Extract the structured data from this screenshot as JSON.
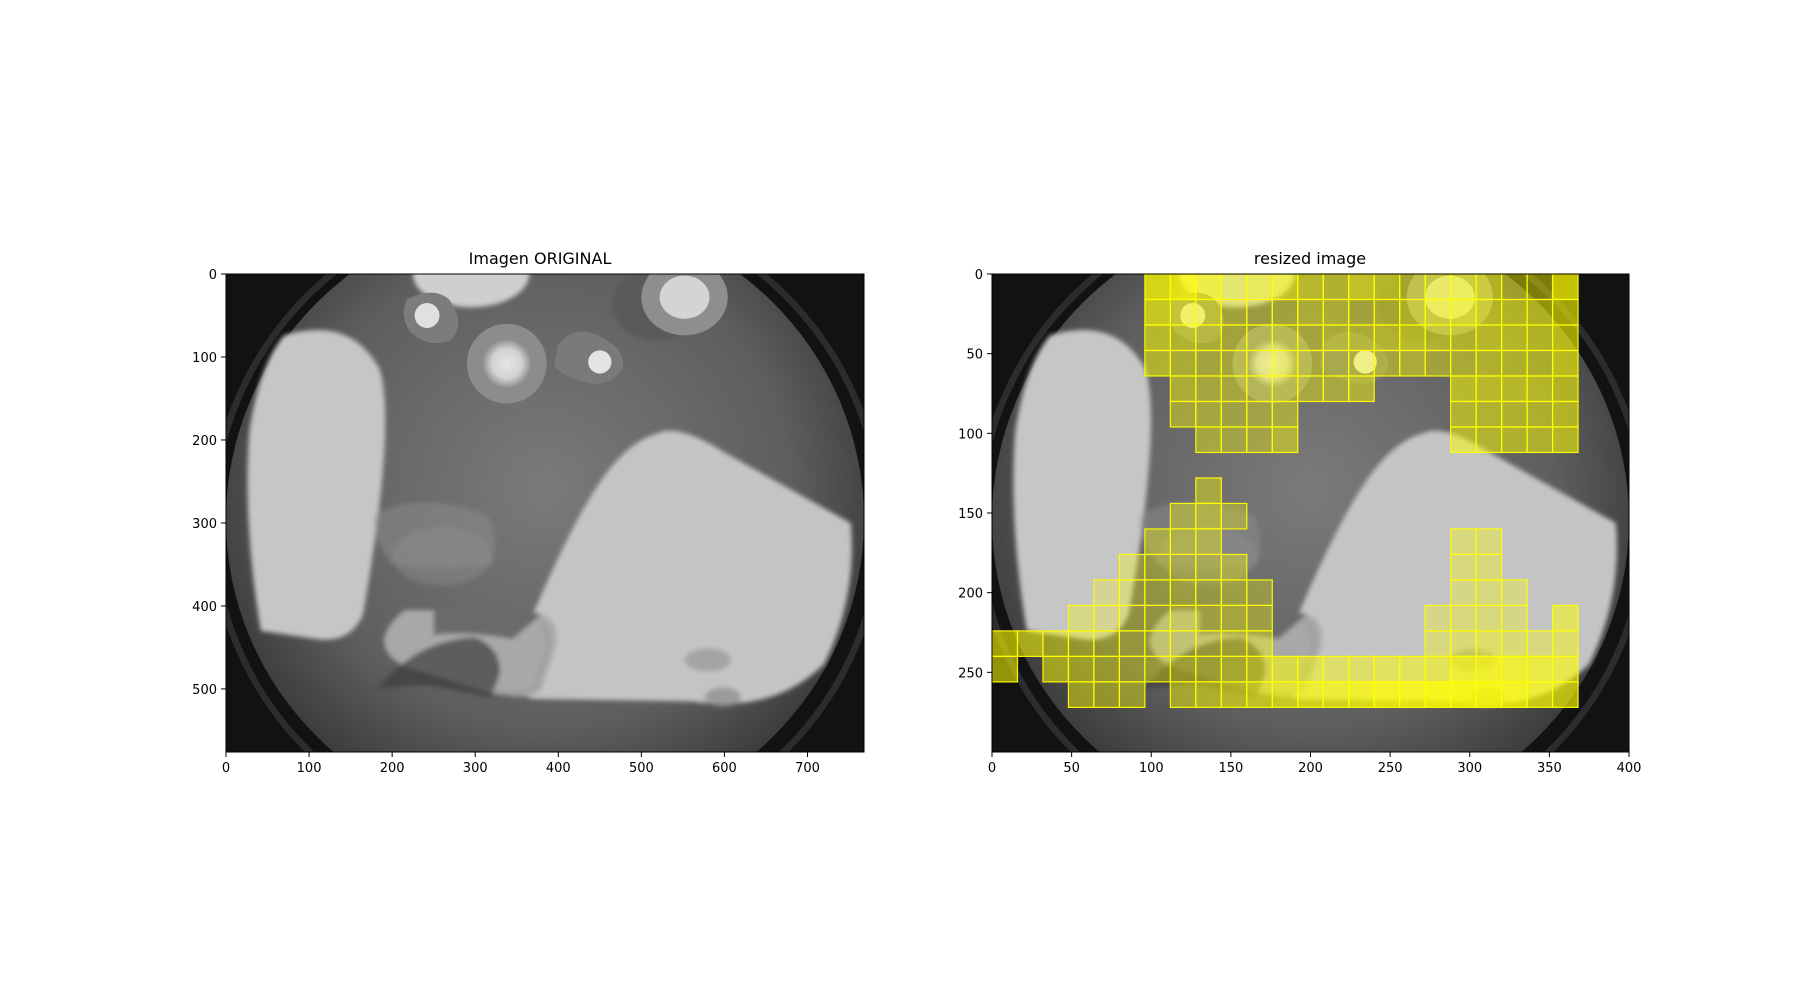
{
  "figure": {
    "panels": [
      {
        "title": "Imagen ORIGINAL",
        "image_size": [
          768,
          576
        ],
        "x_ticks": [
          "0",
          "100",
          "200",
          "300",
          "400",
          "500",
          "600",
          "700"
        ],
        "y_ticks": [
          "0",
          "100",
          "200",
          "300",
          "400",
          "500"
        ]
      },
      {
        "title": "resized image",
        "image_size": [
          400,
          300
        ],
        "x_ticks": [
          "0",
          "50",
          "100",
          "150",
          "200",
          "250",
          "300",
          "350",
          "400"
        ],
        "y_ticks": [
          "0",
          "50",
          "100",
          "150",
          "200",
          "250"
        ],
        "overlay_color": "#ffff00",
        "grid_cell_size": 16
      }
    ]
  }
}
